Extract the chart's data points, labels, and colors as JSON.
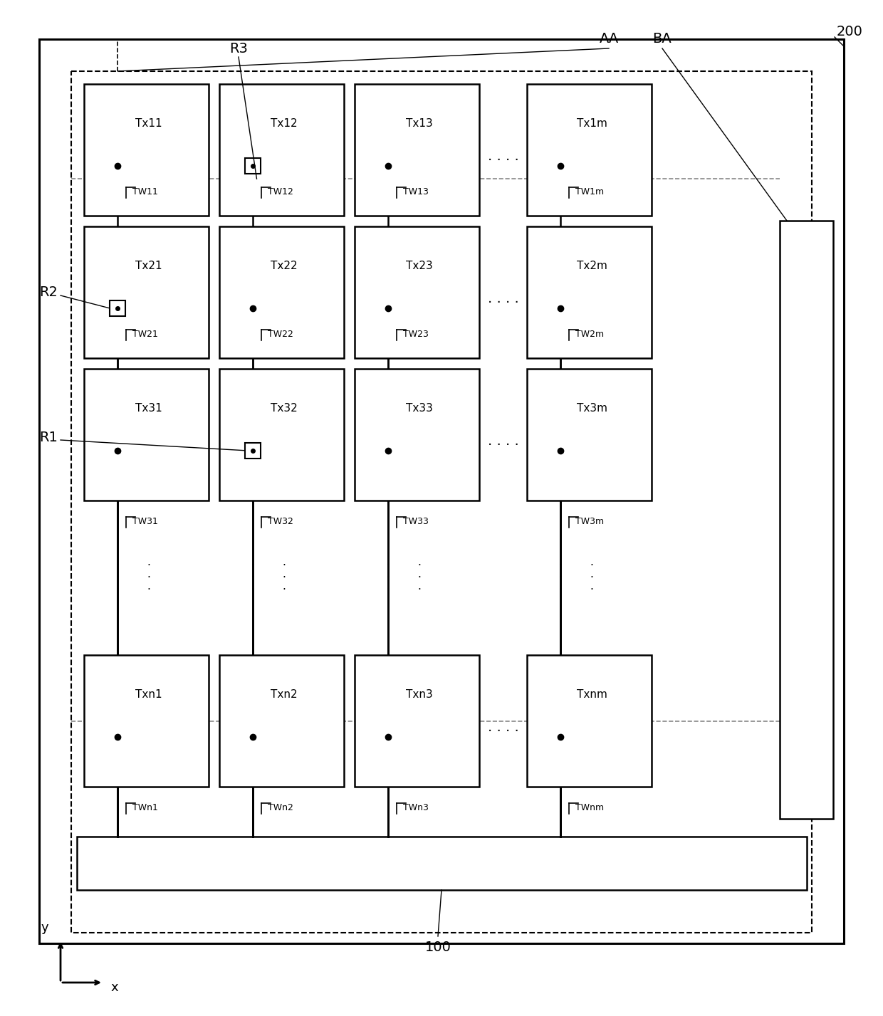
{
  "fig_width": 12.4,
  "fig_height": 14.27,
  "bg_color": "#ffffff",
  "cell_labels": [
    [
      "Tx11",
      "Tx12",
      "Tx13",
      "Tx1m"
    ],
    [
      "Tx21",
      "Tx22",
      "Tx23",
      "Tx2m"
    ],
    [
      "Tx31",
      "Tx32",
      "Tx33",
      "Tx3m"
    ],
    [
      "Txn1",
      "Txn2",
      "Txn3",
      "Txnm"
    ]
  ],
  "wire_labels": [
    [
      "TW11",
      "TW12",
      "TW13",
      "TW1m"
    ],
    [
      "TW21",
      "TW22",
      "TW23",
      "TW2m"
    ],
    [
      "TW31",
      "TW32",
      "TW33",
      "TW3m"
    ],
    [
      "TWn1",
      "TWn2",
      "TWn3",
      "TWnm"
    ]
  ],
  "special_square_cells": [
    [
      0,
      1
    ],
    [
      1,
      0
    ],
    [
      2,
      1
    ]
  ],
  "outer_label": "200",
  "bottom_bar_label": "100",
  "row_labels": [
    "R1",
    "R2",
    "R3"
  ],
  "col_labels": [
    "AA",
    "BA"
  ],
  "axis_x": "x",
  "axis_y": "y"
}
